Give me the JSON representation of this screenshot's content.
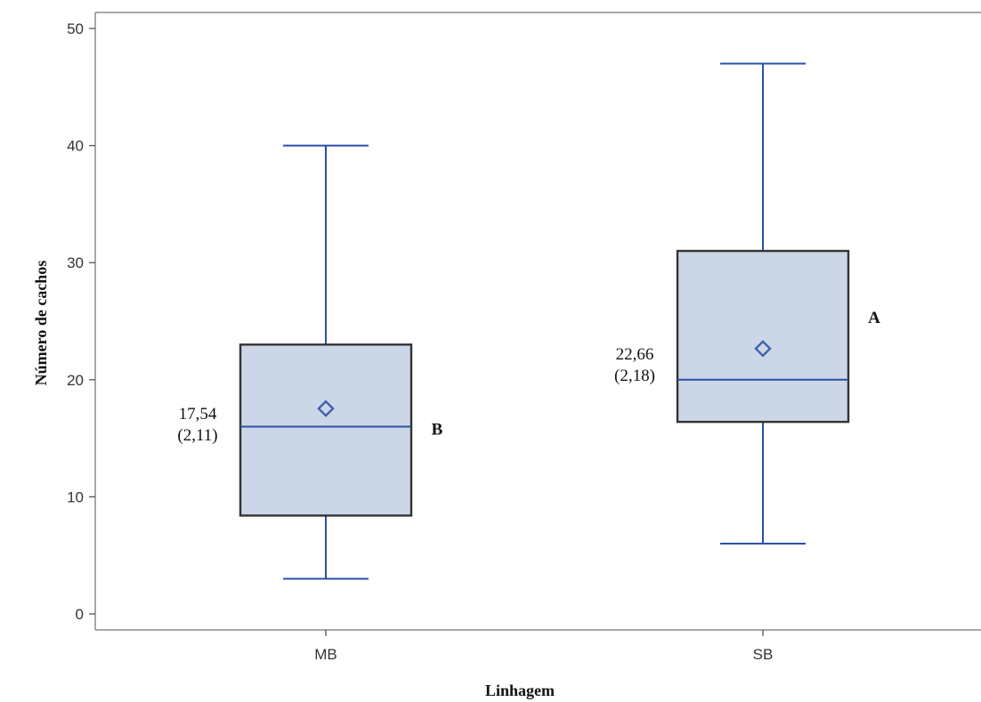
{
  "chart_data": {
    "type": "box",
    "xlabel": "Linhagem",
    "ylabel": "Número de cachos",
    "ylim": [
      0,
      50
    ],
    "yticks": [
      0,
      10,
      20,
      30,
      40,
      50
    ],
    "categories": [
      "MB",
      "SB"
    ],
    "boxes": [
      {
        "category": "MB",
        "min": 3,
        "q1": 8.4,
        "median": 16,
        "q3": 23,
        "max": 40,
        "mean": 17.54,
        "mean_label": "17,54",
        "se_label": "(2,11)",
        "group_letter": "B"
      },
      {
        "category": "SB",
        "min": 6,
        "q1": 16.4,
        "median": 20,
        "q3": 31,
        "max": 47,
        "mean": 22.66,
        "mean_label": "22,66",
        "se_label": "(2,18)",
        "group_letter": "A"
      }
    ],
    "colors": {
      "box_fill": "#cbd6e6",
      "box_stroke": "#333333",
      "whisker": "#2b4fa8",
      "median": "#2b4fa8",
      "mean_marker": "#3f5fb0",
      "axis": "#8c8c8c"
    }
  }
}
